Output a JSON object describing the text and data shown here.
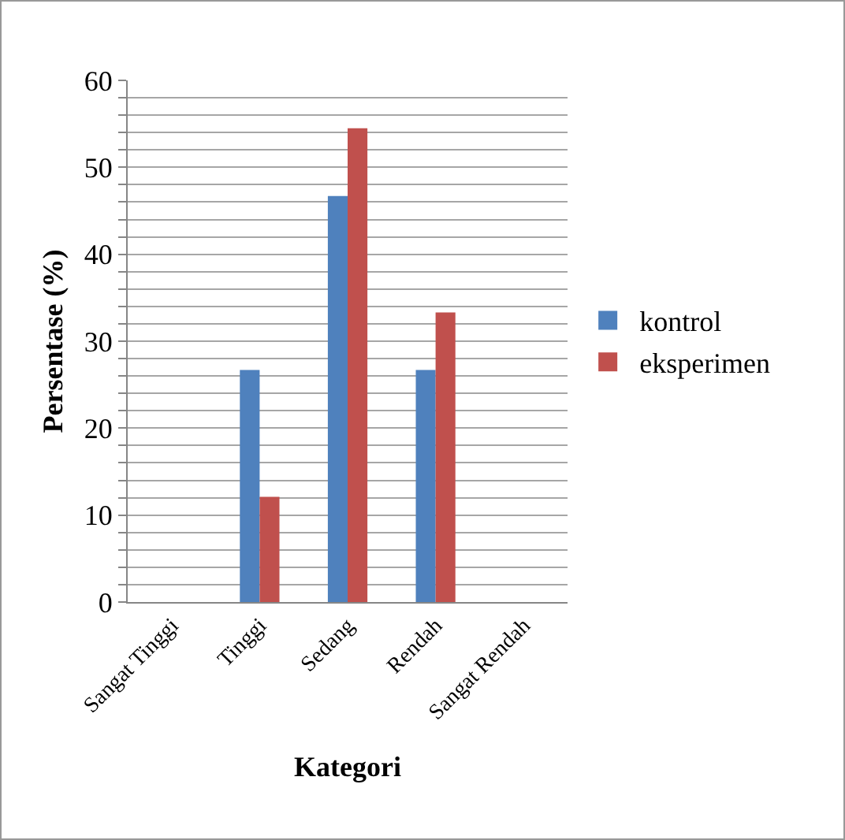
{
  "chart_data": {
    "type": "bar",
    "xlabel": "Kategori",
    "ylabel": "Persentase (%)",
    "categories": [
      "Sangat Tinggi",
      "Tinggi",
      "Sedang",
      "Rendah",
      "Sangat Rendah"
    ],
    "series": [
      {
        "name": "kontrol",
        "color": "#4f81bd",
        "values": [
          0,
          26.7,
          46.7,
          26.7,
          0
        ]
      },
      {
        "name": "eksperimen",
        "color": "#c0504d",
        "values": [
          0,
          12.1,
          54.5,
          33.3,
          0
        ]
      }
    ],
    "ylim": [
      0,
      60
    ],
    "yticks": [
      0,
      {
        "value": 2,
        "label": null
      },
      {
        "value": 4,
        "label": null
      },
      {
        "value": 6,
        "label": null
      },
      {
        "value": 8,
        "label": null
      },
      10,
      {
        "value": 12,
        "label": null
      },
      {
        "value": 14,
        "label": null
      },
      {
        "value": 16,
        "label": null
      },
      {
        "value": 18,
        "label": null
      },
      20,
      {
        "value": 22,
        "label": null
      },
      {
        "value": 24,
        "label": null
      },
      {
        "value": 26,
        "label": null
      },
      {
        "value": 28,
        "label": null
      },
      30,
      {
        "value": 32,
        "label": null
      },
      {
        "value": 34,
        "label": null
      },
      {
        "value": 36,
        "label": null
      },
      {
        "value": 38,
        "label": null
      },
      40,
      {
        "value": 42,
        "label": null
      },
      {
        "value": 44,
        "label": null
      },
      {
        "value": 46,
        "label": null
      },
      {
        "value": 48,
        "label": null
      },
      50,
      {
        "value": 52,
        "label": null
      },
      {
        "value": 54,
        "label": null
      },
      {
        "value": 56,
        "label": null
      },
      {
        "value": 58,
        "label": null
      },
      60
    ],
    "grid": "y",
    "legend": "right"
  }
}
